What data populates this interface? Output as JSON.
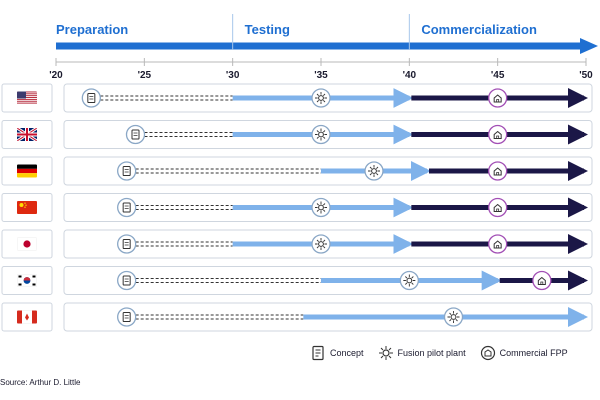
{
  "phases": [
    "Preparation",
    "Testing",
    "Commercialization"
  ],
  "chart_data": {
    "type": "timeline",
    "title": "",
    "x_ticks": [
      "'20",
      "'25",
      "'30",
      "'35",
      "'40",
      "'45",
      "'50"
    ],
    "x_range": [
      2020,
      2050
    ],
    "phase_boundaries": [
      2030,
      2040
    ],
    "countries": [
      {
        "flag": "united-states",
        "concept": 2022,
        "concept_phase_end": 2030,
        "pilot": 2035,
        "pilot_phase_end": 2040,
        "commercial": 2045,
        "end": 2050
      },
      {
        "flag": "united-kingdom",
        "concept": 2024.5,
        "concept_phase_end": 2030,
        "pilot": 2035,
        "pilot_phase_end": 2040,
        "commercial": 2045,
        "end": 2050
      },
      {
        "flag": "germany",
        "concept": 2024,
        "concept_phase_end": 2035,
        "pilot": 2038,
        "pilot_phase_end": 2041,
        "commercial": 2045,
        "end": 2050
      },
      {
        "flag": "china",
        "concept": 2024,
        "concept_phase_end": 2030,
        "pilot": 2035,
        "pilot_phase_end": 2040,
        "commercial": 2045,
        "end": 2050
      },
      {
        "flag": "japan",
        "concept": 2024,
        "concept_phase_end": 2030,
        "pilot": 2035,
        "pilot_phase_end": 2040,
        "commercial": 2045,
        "end": 2050
      },
      {
        "flag": "south-korea",
        "concept": 2024,
        "concept_phase_end": 2035,
        "pilot": 2040,
        "pilot_phase_end": 2045,
        "commercial": 2047.5,
        "end": 2050
      },
      {
        "flag": "canada",
        "concept": 2024,
        "concept_phase_end": 2034,
        "pilot": 2042.5,
        "pilot_phase_end": 2050,
        "commercial": null,
        "end": 2050
      }
    ],
    "legend": [
      "Concept",
      "Fusion pilot plant",
      "Commercial FPP"
    ],
    "colors": {
      "accent": "#1f6fd1",
      "pilot_arrow": "#7fb2ea",
      "commercial_arrow": "#1b1747",
      "concept_dash": "#333333"
    }
  },
  "source": "Source: Arthur D. Little"
}
